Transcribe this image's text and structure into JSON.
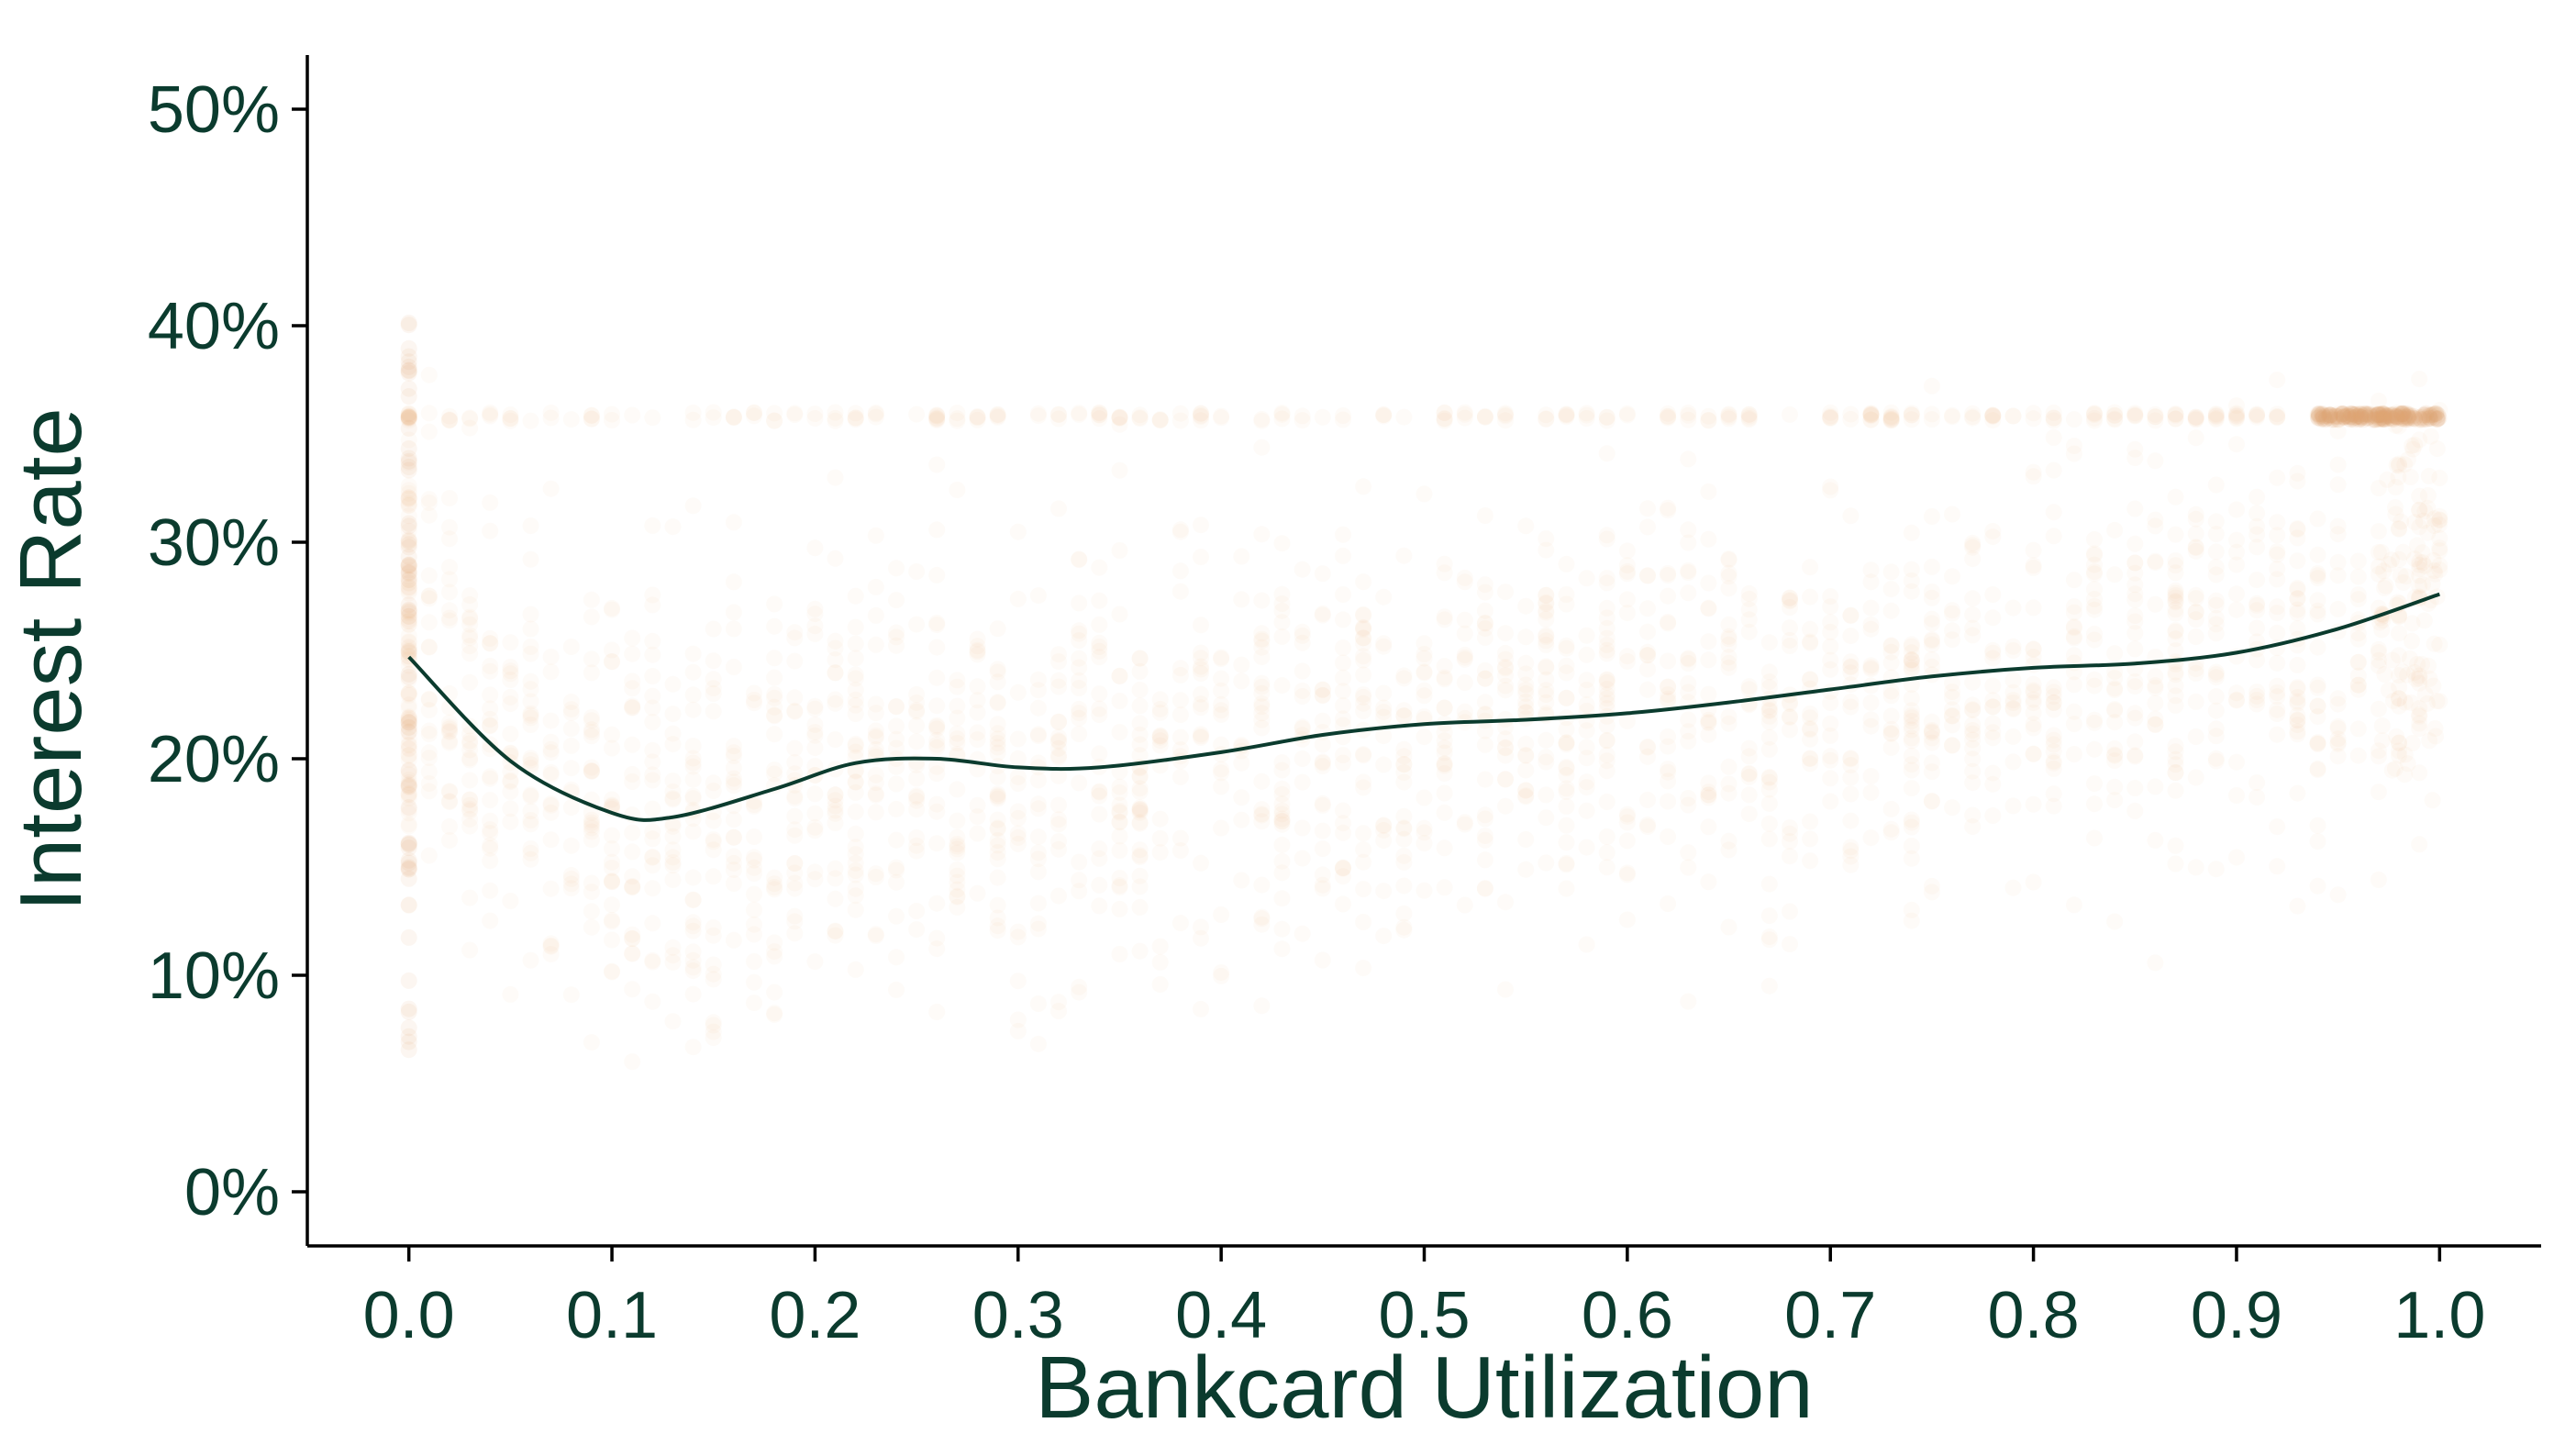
{
  "chart_data": {
    "type": "scatter",
    "xlabel": "Bankcard Utilization",
    "ylabel": "Interest Rate",
    "xlim": [
      -0.05,
      1.05
    ],
    "ylim": [
      -0.025,
      0.525
    ],
    "x_ticks": [
      0.0,
      0.1,
      0.2,
      0.3,
      0.4,
      0.5,
      0.6,
      0.7,
      0.8,
      0.9,
      1.0
    ],
    "x_tick_labels": [
      "0.0",
      "0.1",
      "0.2",
      "0.3",
      "0.4",
      "0.5",
      "0.6",
      "0.7",
      "0.8",
      "0.9",
      "1.0"
    ],
    "y_ticks": [
      0.0,
      0.1,
      0.2,
      0.3,
      0.4,
      0.5
    ],
    "y_tick_labels": [
      "0%",
      "10%",
      "20%",
      "30%",
      "40%",
      "50%"
    ],
    "grid": false,
    "legend": "none",
    "point_color": "#e2a877",
    "line_color": "#0b3b2e",
    "text_color": "#0b3b2e",
    "scatter_summary": {
      "x_range": [
        0.0,
        1.0
      ],
      "y_range": [
        0.06,
        0.41
      ],
      "dense_band_y": 0.358,
      "point_opacity": "very low (overplotted)"
    },
    "smooth_curve": {
      "x": [
        0.0,
        0.05,
        0.1,
        0.13,
        0.18,
        0.22,
        0.26,
        0.3,
        0.34,
        0.4,
        0.45,
        0.5,
        0.55,
        0.6,
        0.65,
        0.7,
        0.75,
        0.8,
        0.85,
        0.9,
        0.95,
        1.0
      ],
      "y": [
        0.247,
        0.199,
        0.175,
        0.173,
        0.186,
        0.198,
        0.2,
        0.196,
        0.196,
        0.203,
        0.211,
        0.216,
        0.218,
        0.221,
        0.226,
        0.232,
        0.238,
        0.242,
        0.244,
        0.249,
        0.26,
        0.276
      ]
    }
  }
}
